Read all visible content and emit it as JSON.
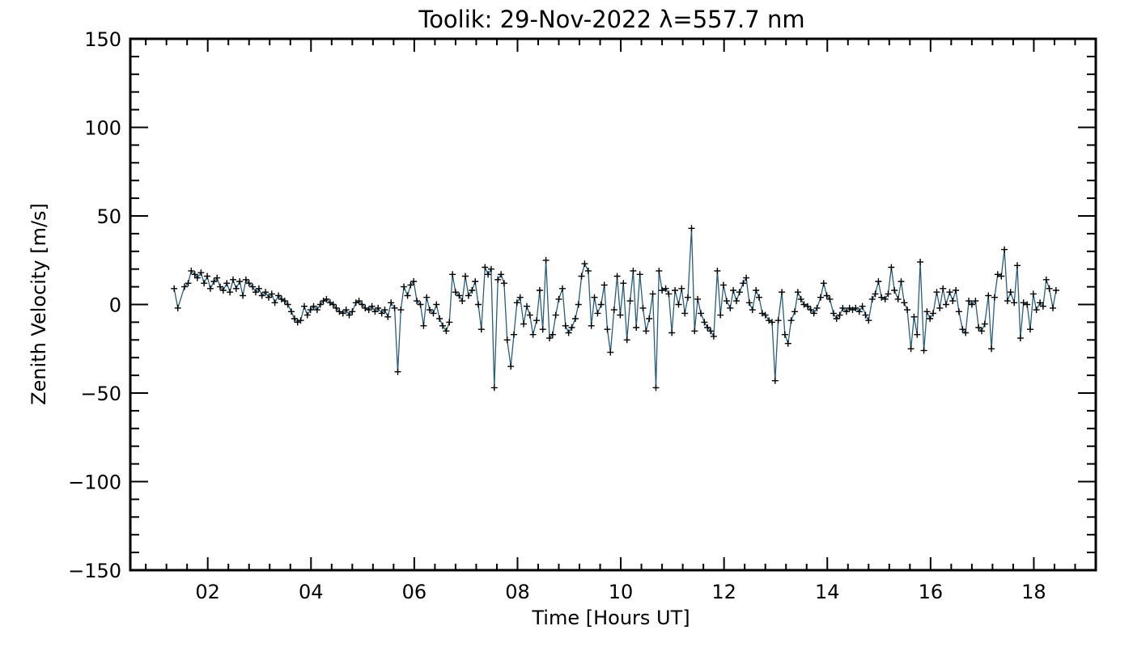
{
  "chart_data": {
    "type": "line",
    "title": "Toolik: 29-Nov-2022 λ=557.7 nm",
    "xlabel": "Time [Hours UT]",
    "ylabel": "Zenith Velocity [m/s]",
    "xlim": [
      0.5,
      19.2
    ],
    "ylim": [
      -150,
      150
    ],
    "x_ticks": [
      2,
      4,
      6,
      8,
      10,
      12,
      14,
      16,
      18
    ],
    "x_tick_labels": [
      "02",
      "04",
      "06",
      "08",
      "10",
      "12",
      "14",
      "16",
      "18"
    ],
    "y_ticks": [
      -150,
      -100,
      -50,
      0,
      50,
      100,
      150
    ],
    "y_tick_labels": [
      "−150",
      "−100",
      "−50",
      "0",
      "50",
      "100",
      "150"
    ],
    "grid": false,
    "legend": false,
    "line_color": "#2a5d7a",
    "marker": "+",
    "marker_color": "#000000",
    "series": [
      {
        "x": [
          1.35,
          1.42,
          1.55,
          1.62,
          1.68,
          1.75,
          1.8,
          1.87,
          1.93,
          1.99,
          2.05,
          2.12,
          2.18,
          2.24,
          2.3,
          2.37,
          2.43,
          2.49,
          2.55,
          2.62,
          2.68,
          2.74,
          2.8,
          2.87,
          2.93,
          2.99,
          3.05,
          3.12,
          3.18,
          3.24,
          3.3,
          3.37,
          3.43,
          3.49,
          3.55,
          3.62,
          3.68,
          3.74,
          3.8,
          3.87,
          3.93,
          3.99,
          4.05,
          4.12,
          4.18,
          4.24,
          4.3,
          4.37,
          4.43,
          4.49,
          4.55,
          4.62,
          4.68,
          4.74,
          4.8,
          4.87,
          4.93,
          4.99,
          5.05,
          5.12,
          5.18,
          5.24,
          5.3,
          5.37,
          5.43,
          5.49,
          5.55,
          5.62,
          5.68,
          5.74,
          5.8,
          5.87,
          5.93,
          5.99,
          6.05,
          6.12,
          6.18,
          6.24,
          6.3,
          6.37,
          6.43,
          6.49,
          6.55,
          6.62,
          6.68,
          6.74,
          6.8,
          6.87,
          6.93,
          6.99,
          7.05,
          7.12,
          7.18,
          7.24,
          7.3,
          7.37,
          7.43,
          7.49,
          7.55,
          7.62,
          7.68,
          7.74,
          7.8,
          7.87,
          7.93,
          7.99,
          8.05,
          8.12,
          8.18,
          8.24,
          8.3,
          8.37,
          8.43,
          8.49,
          8.55,
          8.62,
          8.68,
          8.74,
          8.8,
          8.87,
          8.93,
          8.99,
          9.05,
          9.12,
          9.18,
          9.24,
          9.3,
          9.37,
          9.43,
          9.49,
          9.55,
          9.62,
          9.68,
          9.74,
          9.8,
          9.87,
          9.93,
          9.99,
          10.05,
          10.12,
          10.18,
          10.24,
          10.3,
          10.37,
          10.43,
          10.49,
          10.55,
          10.62,
          10.68,
          10.74,
          10.8,
          10.87,
          10.93,
          10.99,
          11.05,
          11.12,
          11.18,
          11.24,
          11.3,
          11.37,
          11.43,
          11.49,
          11.55,
          11.62,
          11.68,
          11.74,
          11.8,
          11.87,
          11.93,
          11.99,
          12.05,
          12.12,
          12.18,
          12.24,
          12.3,
          12.37,
          12.43,
          12.49,
          12.55,
          12.62,
          12.68,
          12.74,
          12.8,
          12.87,
          12.93,
          12.99,
          13.05,
          13.12,
          13.18,
          13.24,
          13.3,
          13.37,
          13.43,
          13.49,
          13.55,
          13.62,
          13.68,
          13.74,
          13.8,
          13.87,
          13.93,
          13.99,
          14.05,
          14.12,
          14.18,
          14.24,
          14.3,
          14.37,
          14.43,
          14.49,
          14.55,
          14.62,
          14.68,
          14.74,
          14.8,
          14.87,
          14.93,
          14.99,
          15.05,
          15.12,
          15.18,
          15.24,
          15.3,
          15.37,
          15.43,
          15.49,
          15.55,
          15.62,
          15.68,
          15.74,
          15.8,
          15.87,
          15.93,
          15.99,
          16.05,
          16.12,
          16.18,
          16.24,
          16.3,
          16.37,
          16.43,
          16.49,
          16.55,
          16.62,
          16.68,
          16.74,
          16.8,
          16.87,
          16.93,
          16.99,
          17.05,
          17.12,
          17.18,
          17.24,
          17.3,
          17.37,
          17.43,
          17.49,
          17.55,
          17.62,
          17.68,
          17.74,
          17.8,
          17.87,
          17.93,
          17.99,
          18.05,
          18.12,
          18.18,
          18.24,
          18.3,
          18.37,
          18.43
        ],
        "y": [
          9,
          -2,
          10,
          12,
          19,
          17,
          15,
          18,
          12,
          16,
          9,
          13,
          15,
          10,
          8,
          12,
          7,
          14,
          9,
          13,
          5,
          14,
          12,
          10,
          7,
          9,
          5,
          7,
          4,
          6,
          1,
          5,
          3,
          2,
          0,
          -4,
          -8,
          -10,
          -9,
          -1,
          -6,
          -3,
          -1,
          -3,
          0,
          2,
          3,
          1,
          0,
          -2,
          -4,
          -5,
          -3,
          -6,
          -4,
          1,
          2,
          0,
          -2,
          -3,
          -1,
          -4,
          -2,
          -5,
          -3,
          -7,
          1,
          -2,
          -38,
          -3,
          10,
          5,
          11,
          13,
          2,
          0,
          -12,
          4,
          -3,
          -5,
          0,
          -8,
          -12,
          -15,
          -10,
          17,
          7,
          5,
          2,
          16,
          5,
          8,
          13,
          0,
          -14,
          21,
          17,
          20,
          -47,
          14,
          17,
          12,
          -20,
          -35,
          -17,
          1,
          4,
          -11,
          -1,
          -6,
          -17,
          -9,
          8,
          -14,
          25,
          -19,
          -17,
          -6,
          3,
          9,
          -12,
          -16,
          -13,
          -8,
          0,
          16,
          23,
          19,
          -12,
          4,
          -5,
          0,
          11,
          -14,
          -27,
          -3,
          16,
          -6,
          12,
          -20,
          2,
          19,
          -13,
          17,
          -2,
          -15,
          -8,
          6,
          -47,
          19,
          8,
          9,
          6,
          -16,
          8,
          0,
          9,
          -5,
          4,
          43,
          -15,
          3,
          -5,
          -10,
          -13,
          -15,
          -18,
          19,
          -6,
          11,
          2,
          -2,
          8,
          2,
          7,
          12,
          15,
          1,
          -3,
          8,
          4,
          -5,
          -6,
          -9,
          -10,
          -43,
          -9,
          7,
          -17,
          -22,
          -9,
          -4,
          7,
          3,
          0,
          -1,
          -3,
          -5,
          -2,
          4,
          12,
          5,
          3,
          -5,
          -8,
          -6,
          -2,
          -4,
          -2,
          -3,
          -2,
          -4,
          -1,
          -6,
          -9,
          3,
          6,
          13,
          4,
          3,
          6,
          21,
          8,
          3,
          13,
          1,
          -3,
          -25,
          -7,
          -17,
          24,
          -26,
          -4,
          -8,
          -5,
          7,
          -2,
          9,
          0,
          7,
          2,
          8,
          -4,
          -14,
          -16,
          2,
          0,
          2,
          -13,
          -15,
          -11,
          5,
          -25,
          4,
          17,
          16,
          31,
          2,
          7,
          1,
          22,
          -19,
          1,
          0,
          -14,
          6,
          -3,
          1,
          -1,
          14,
          9,
          -2,
          8
        ]
      }
    ]
  }
}
